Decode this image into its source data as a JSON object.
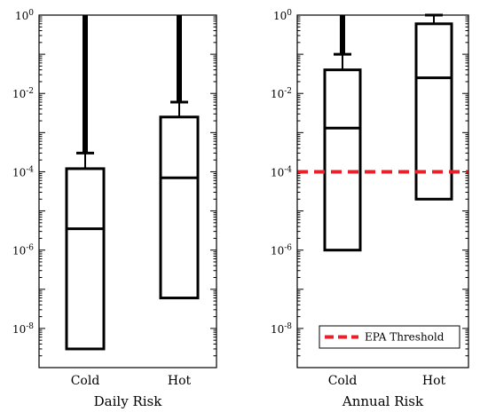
{
  "chart_data": [
    {
      "type": "box",
      "xlabel": "Daily Risk",
      "yscale": "log",
      "ylim": [
        1e-09,
        1
      ],
      "yticks": [
        {
          "base": "10",
          "exp": "0"
        },
        {
          "base": "10",
          "exp": "-2"
        },
        {
          "base": "10",
          "exp": "-4"
        },
        {
          "base": "10",
          "exp": "-6"
        },
        {
          "base": "10",
          "exp": "-8"
        }
      ],
      "categories": [
        "Cold",
        "Hot"
      ],
      "boxes": [
        {
          "category": "Cold",
          "min": 3e-09,
          "q1": 3e-09,
          "median": 3.5e-06,
          "q3": 0.00012,
          "whisker_high": 0.0003,
          "max": 1
        },
        {
          "category": "Hot",
          "min": 6e-08,
          "q1": 6e-08,
          "median": 7e-05,
          "q3": 0.0025,
          "whisker_high": 0.006,
          "max": 1
        }
      ]
    },
    {
      "type": "box",
      "xlabel": "Annual Risk",
      "yscale": "log",
      "ylim": [
        1e-09,
        1
      ],
      "yticks": [
        {
          "base": "10",
          "exp": "0"
        },
        {
          "base": "10",
          "exp": "-2"
        },
        {
          "base": "10",
          "exp": "-4"
        },
        {
          "base": "10",
          "exp": "-6"
        },
        {
          "base": "10",
          "exp": "-8"
        }
      ],
      "categories": [
        "Cold",
        "Hot"
      ],
      "boxes": [
        {
          "category": "Cold",
          "min": 1e-06,
          "q1": 1e-06,
          "median": 0.0013,
          "q3": 0.04,
          "whisker_high": 0.1,
          "max": 1
        },
        {
          "category": "Hot",
          "min": 2e-05,
          "q1": 2e-05,
          "median": 0.025,
          "q3": 0.6,
          "whisker_high": 1,
          "max": 1
        }
      ],
      "threshold": {
        "label": "EPA Threshold",
        "value": 0.0001,
        "color": "#e8202a"
      },
      "legend": {
        "placement": "bottom-right"
      }
    }
  ]
}
